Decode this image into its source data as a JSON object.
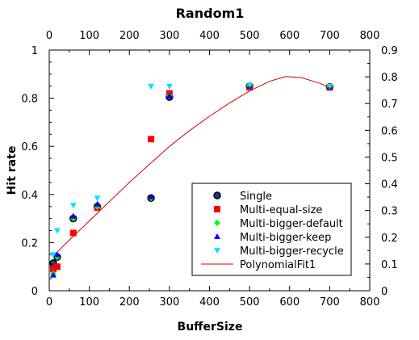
{
  "chart_data": {
    "type": "scatter",
    "title": "Random1",
    "xlabel": "BufferSize",
    "ylabel": "Hit rate",
    "xlim": [
      0,
      800
    ],
    "ylim": [
      0,
      1
    ],
    "y2lim": [
      0,
      0.9
    ],
    "x_ticks": [
      "0",
      "100",
      "200",
      "300",
      "400",
      "500",
      "600",
      "700",
      "800"
    ],
    "y_ticks": [
      "0",
      "0.2",
      "0.4",
      "0.6",
      "0.8",
      "1"
    ],
    "y2_ticks": [
      "0",
      "0.1",
      "0.2",
      "0.3",
      "0.4",
      "0.5",
      "0.6",
      "0.7",
      "0.8",
      "0.9"
    ],
    "legend_position": "bottom-right",
    "series": [
      {
        "name": "Single",
        "marker": "circle",
        "color": "#000000",
        "fill": "#1a3a8c",
        "points": [
          [
            10,
            0.115
          ],
          [
            20,
            0.14
          ],
          [
            60,
            0.3
          ],
          [
            120,
            0.35
          ],
          [
            254,
            0.385
          ],
          [
            300,
            0.805
          ],
          [
            500,
            0.85
          ],
          [
            700,
            0.847
          ]
        ]
      },
      {
        "name": "Multi-equal-size",
        "marker": "square",
        "color": "#ff0000",
        "points": [
          [
            10,
            0.09
          ],
          [
            20,
            0.1
          ],
          [
            60,
            0.24
          ],
          [
            120,
            0.345
          ],
          [
            254,
            0.63
          ],
          [
            300,
            0.82
          ],
          [
            500,
            0.845
          ],
          [
            700,
            0.845
          ]
        ]
      },
      {
        "name": "Multi-bigger-default",
        "marker": "diamond",
        "color": "#00ff00",
        "points": [
          [
            10,
            0.07
          ],
          [
            20,
            0.14
          ],
          [
            60,
            0.3
          ],
          [
            120,
            0.35
          ],
          [
            254,
            0.385
          ],
          [
            300,
            0.81
          ],
          [
            500,
            0.85
          ],
          [
            700,
            0.847
          ]
        ]
      },
      {
        "name": "Multi-bigger-keep",
        "marker": "triangle-up",
        "color": "#0000ff",
        "points": [
          [
            10,
            0.065
          ],
          [
            20,
            0.15
          ],
          [
            60,
            0.31
          ],
          [
            120,
            0.36
          ],
          [
            254,
            0.39
          ],
          [
            300,
            0.81
          ],
          [
            500,
            0.85
          ],
          [
            700,
            0.847
          ]
        ]
      },
      {
        "name": "Multi-bigger-recycle",
        "marker": "triangle-down",
        "color": "#00e5ff",
        "points": [
          [
            10,
            0.15
          ],
          [
            20,
            0.25
          ],
          [
            60,
            0.355
          ],
          [
            120,
            0.385
          ],
          [
            254,
            0.85
          ],
          [
            300,
            0.85
          ],
          [
            500,
            0.855
          ],
          [
            700,
            0.85
          ]
        ]
      },
      {
        "name": "PolynomialFit1",
        "marker": "line",
        "color": "#cc0000",
        "points": [
          [
            10,
            0.145
          ],
          [
            50,
            0.21
          ],
          [
            100,
            0.29
          ],
          [
            150,
            0.37
          ],
          [
            200,
            0.45
          ],
          [
            250,
            0.525
          ],
          [
            300,
            0.6
          ],
          [
            350,
            0.665
          ],
          [
            400,
            0.725
          ],
          [
            450,
            0.78
          ],
          [
            500,
            0.83
          ],
          [
            550,
            0.87
          ],
          [
            590,
            0.89
          ],
          [
            630,
            0.885
          ],
          [
            670,
            0.865
          ],
          [
            700,
            0.845
          ]
        ]
      }
    ]
  }
}
